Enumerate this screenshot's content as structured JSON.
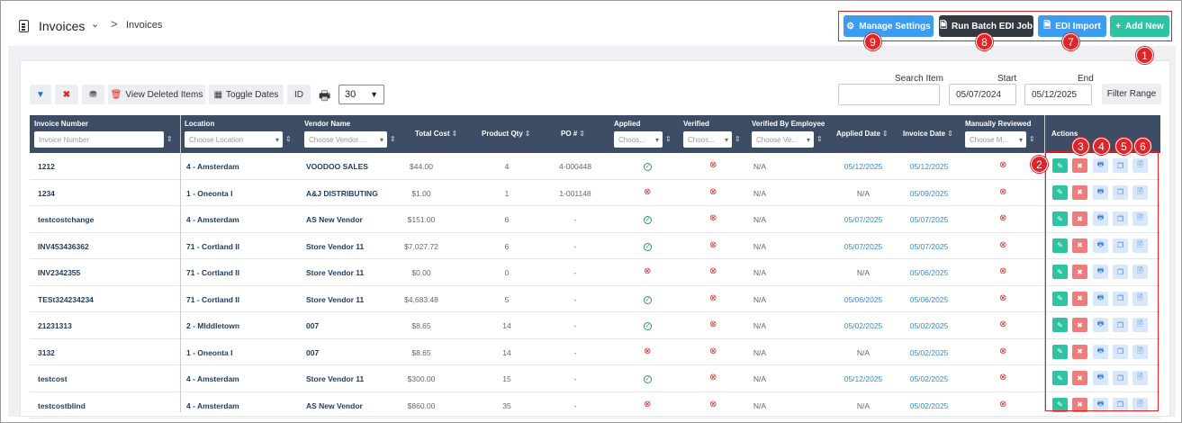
{
  "breadcrumb": {
    "title": "Invoices",
    "current": "Invoices",
    "separator": ">",
    "chevron": "⌄"
  },
  "header_buttons": {
    "manage_settings": "Manage Settings",
    "run_batch": "Run Batch EDI Job",
    "edi_import": "EDI Import",
    "add_new": "Add New"
  },
  "badges": {
    "b1": "1",
    "b2": "2",
    "b3": "3",
    "b4": "4",
    "b5": "5",
    "b6": "6",
    "b7": "7",
    "b8": "8",
    "b9": "9"
  },
  "toolbar": {
    "view_deleted": "View Deleted Items",
    "toggle_dates": "Toggle Dates",
    "id": "ID",
    "page_size": "30"
  },
  "search": {
    "label": "Search Item",
    "value": "",
    "start_label": "Start",
    "start": "05/07/2024",
    "end_label": "End",
    "end": "05/12/2025",
    "filter_range": "Filter Range"
  },
  "columns": {
    "invoice_number": "Invoice Number",
    "location": "Location",
    "vendor_name": "Vendor Name",
    "total_cost": "Total Cost",
    "product_qty": "Product Qty",
    "po": "PO #",
    "applied": "Applied",
    "verified": "Verified",
    "verified_by": "Verified By Employee",
    "applied_date": "Applied Date",
    "invoice_date": "Invoice Date",
    "manually_reviewed": "Manually Reviewed",
    "actions": "Actions"
  },
  "filters": {
    "invoice_number": "Invoice Number",
    "location": "Choose Location",
    "vendor": "Choose Vendor ...",
    "applied": "Choos...",
    "verified": "Choos...",
    "verified_by": "Choose Ve...",
    "manually": "Choose M..."
  },
  "rows": [
    {
      "inv": "1212",
      "loc": "4 - Amsterdam",
      "vendor": "VOODOO SALES",
      "cost": "$44.00",
      "qty": "4",
      "po": "4-000448",
      "applied": true,
      "by": "N/A",
      "adate": "05/12/2025",
      "idate": "05/12/2025"
    },
    {
      "inv": "1234",
      "loc": "1 - Oneonta I",
      "vendor": "A&J DISTRIBUTING",
      "cost": "$1.00",
      "qty": "1",
      "po": "1-001148",
      "applied": false,
      "by": "N/A",
      "adate": "N/A",
      "idate": "05/09/2025"
    },
    {
      "inv": "testcostchange",
      "loc": "4 - Amsterdam",
      "vendor": "AS New Vendor",
      "cost": "$151.00",
      "qty": "6",
      "po": "-",
      "applied": true,
      "by": "N/A",
      "adate": "05/07/2025",
      "idate": "05/07/2025"
    },
    {
      "inv": "INV453436362",
      "loc": "71 - Cortland II",
      "vendor": "Store Vendor 11",
      "cost": "$7,027.72",
      "qty": "6",
      "po": "-",
      "applied": true,
      "by": "N/A",
      "adate": "05/07/2025",
      "idate": "05/07/2025"
    },
    {
      "inv": "INV2342355",
      "loc": "71 - Cortland II",
      "vendor": "Store Vendor 11",
      "cost": "$0.00",
      "qty": "0",
      "po": "-",
      "applied": false,
      "by": "N/A",
      "adate": "N/A",
      "idate": "05/06/2025"
    },
    {
      "inv": "TESt324234234",
      "loc": "71 - Cortland II",
      "vendor": "Store Vendor 11",
      "cost": "$4,683.48",
      "qty": "5",
      "po": "-",
      "applied": true,
      "by": "N/A",
      "adate": "05/06/2025",
      "idate": "05/06/2025"
    },
    {
      "inv": "21231313",
      "loc": "2 - MIddletown",
      "vendor": "007",
      "cost": "$8.65",
      "qty": "14",
      "po": "-",
      "applied": true,
      "by": "N/A",
      "adate": "05/02/2025",
      "idate": "05/02/2025"
    },
    {
      "inv": "3132",
      "loc": "1 - Oneonta I",
      "vendor": "007",
      "cost": "$8.65",
      "qty": "14",
      "po": "-",
      "applied": false,
      "by": "N/A",
      "adate": "N/A",
      "idate": "05/02/2025"
    },
    {
      "inv": "testcost",
      "loc": "4 - Amsterdam",
      "vendor": "Store Vendor 11",
      "cost": "$300.00",
      "qty": "15",
      "po": "-",
      "applied": true,
      "by": "N/A",
      "adate": "05/12/2025",
      "idate": "05/02/2025"
    },
    {
      "inv": "testcostblind",
      "loc": "4 - Amsterdam",
      "vendor": "AS New Vendor",
      "cost": "$860.00",
      "qty": "35",
      "po": "-",
      "applied": false,
      "by": "N/A",
      "adate": "N/A",
      "idate": "05/02/2025"
    }
  ],
  "colors": {
    "header": "#3d4d66",
    "accent": "#3d9bf0",
    "success": "#2ec4a3",
    "danger": "#e02828",
    "annotation": "#e0252a"
  }
}
